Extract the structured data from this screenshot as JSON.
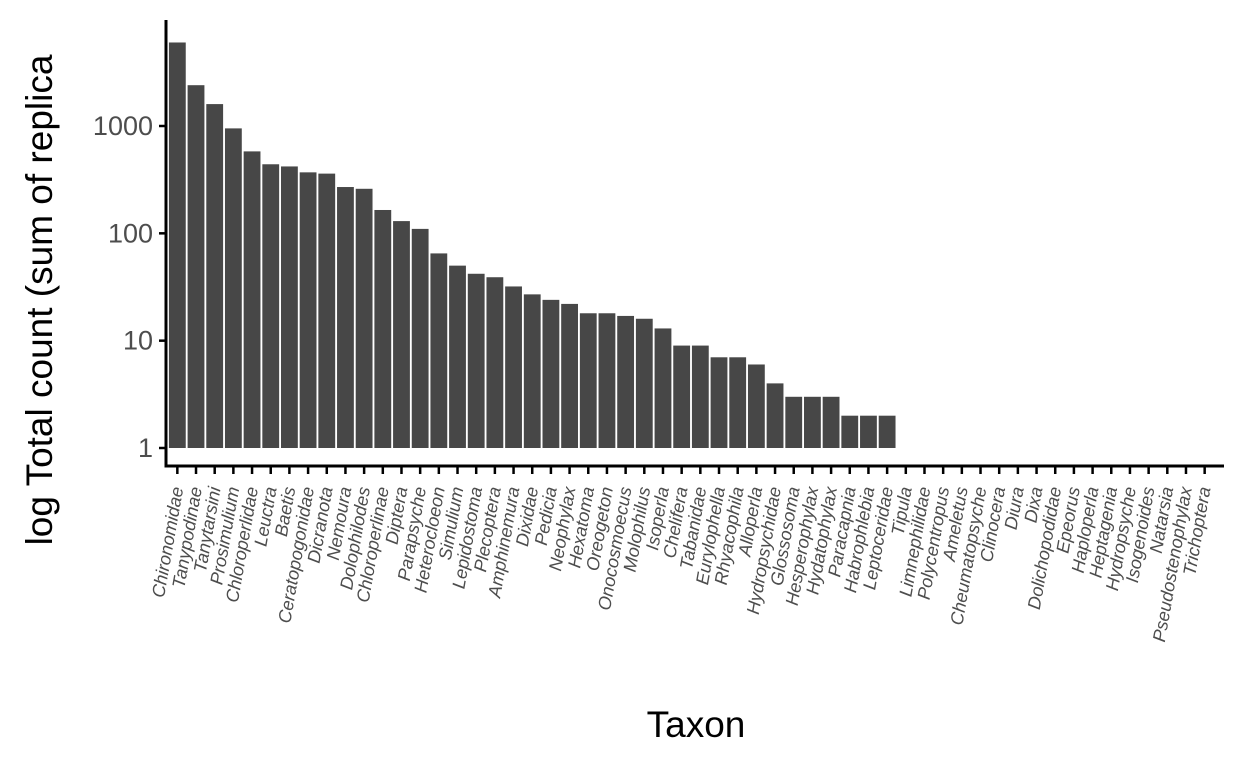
{
  "chart_data": {
    "type": "bar",
    "xlabel": "Taxon",
    "ylabel": "log Total count (sum of replica",
    "y_scale": "log10",
    "ylim": [
      1,
      10000
    ],
    "y_ticks": [
      1,
      10,
      100,
      1000
    ],
    "y_tick_labels": [
      "1",
      "10",
      "100",
      "1000"
    ],
    "grid": false,
    "legend": "none",
    "bar_color": "#474747",
    "categories": [
      "Chironomidae",
      "Tanypodinae",
      "Tanytarsini",
      "Prosimulium",
      "Chloroperlidae",
      "Leuctra",
      "Baetis",
      "Ceratopogonidae",
      "Dicranota",
      "Nemoura",
      "Dolophilodes",
      "Chloroperlinae",
      "Diptera",
      "Parapsyche",
      "Heterocloeon",
      "Simulium",
      "Lepidostoma",
      "Plecoptera",
      "Amphinemura",
      "Dixidae",
      "Pedicia",
      "Neophylax",
      "Hexatoma",
      "Oreogeton",
      "Onocosmoecus",
      "Molophilus",
      "Isoperla",
      "Chelifera",
      "Tabanidae",
      "Eurylophella",
      "Rhyacophila",
      "Alloperla",
      "Hydropsychidae",
      "Glossosoma",
      "Hesperophylax",
      "Hydatophylax",
      "Paracapnia",
      "Habrophlebia",
      "Leptoceridae",
      "Tipula",
      "Limnephilidae",
      "Polycentropus",
      "Ameletus",
      "Cheumatopsyche",
      "Clinocera",
      "Diura",
      "Dixa",
      "Dolichopodidae",
      "Epeorus",
      "Haploperla",
      "Heptagenia",
      "Hydropsyche",
      "Isogenoides",
      "Natarsia",
      "Pseudostenophylax",
      "Trichoptera"
    ],
    "values": [
      6000,
      2400,
      1600,
      950,
      580,
      440,
      420,
      370,
      360,
      270,
      260,
      165,
      130,
      110,
      65,
      50,
      42,
      39,
      32,
      27,
      24,
      22,
      18,
      18,
      17,
      16,
      13,
      9,
      9,
      7,
      7,
      6,
      4,
      3,
      3,
      3,
      2,
      2,
      2,
      1,
      1,
      1,
      1,
      1,
      1,
      1,
      1,
      1,
      1,
      1,
      1,
      1,
      1,
      1,
      1,
      1
    ]
  }
}
